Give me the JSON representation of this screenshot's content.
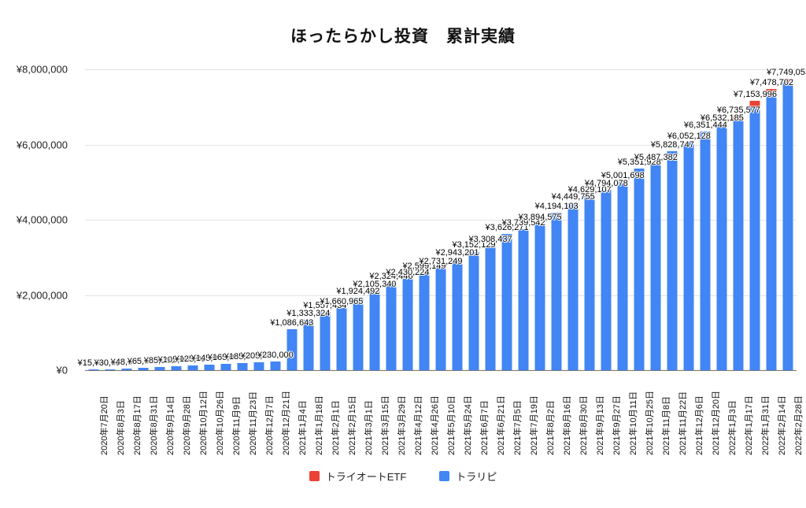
{
  "title": "ほったらかし投資　累計実績",
  "colors": {
    "etf_red": "#EA4335",
    "toraripi_blue": "#4285F4",
    "grid": "#E3E3E3",
    "axis_line": "#777777",
    "text": "#111111"
  },
  "legend": {
    "items": [
      {
        "label": "トライオートETF",
        "color": "#EA4335"
      },
      {
        "label": "トラリピ",
        "color": "#4285F4"
      }
    ]
  },
  "chart_data": {
    "type": "bar",
    "stacked": true,
    "title": "ほったらかし投資　累計実績",
    "xlabel": "",
    "ylabel": "",
    "ylim": [
      0,
      8000000
    ],
    "grid": true,
    "legend_position": "bottom",
    "bar_labels": "totals shown above each bar, prefixed with ¥",
    "yticks": [
      {
        "label": "¥8,000,000",
        "value": 8000000
      },
      {
        "label": "¥6,000,000",
        "value": 6000000
      },
      {
        "label": "¥4,000,000",
        "value": 4000000
      },
      {
        "label": "¥2,000,000",
        "value": 2000000
      },
      {
        "label": "¥0",
        "value": 0
      }
    ],
    "categories": [
      "2020年7月20日",
      "2020年8月3日",
      "2020年8月17日",
      "2020年8月31日",
      "2020年9月14日",
      "2020年9月28日",
      "2020年10月12日",
      "2020年10月26日",
      "2020年11月9日",
      "2020年11月23日",
      "2020年12月7日",
      "2020年12月21日",
      "2021年1月4日",
      "2021年1月18日",
      "2021年2月1日",
      "2021年2月15日",
      "2021年3月1日",
      "2021年3月15日",
      "2021年3月29日",
      "2021年4月12日",
      "2021年4月26日",
      "2021年5月10日",
      "2021年5月24日",
      "2021年6月7日",
      "2021年6月21日",
      "2021年7月5日",
      "2021年7月19日",
      "2021年8月2日",
      "2021年8月16日",
      "2021年8月30日",
      "2021年9月13日",
      "2021年9月27日",
      "2021年10月11日",
      "2021年10月25日",
      "2021年11月8日",
      "2021年11月22日",
      "2021年12月6日",
      "2021年12月20日",
      "2022年1月3日",
      "2022年1月17日",
      "2022年1月31日",
      "2022年2月14日",
      "2022年2月28日"
    ],
    "totals": [
      15000,
      30000,
      48000,
      65000,
      85000,
      105000,
      125000,
      145000,
      165000,
      185000,
      205000,
      230000,
      1086643,
      1333324,
      1557434,
      1660965,
      1924492,
      2105340,
      2324446,
      2430224,
      2599149,
      2731249,
      2943201,
      3152129,
      3308437,
      3626271,
      3739542,
      3894575,
      4194103,
      4449755,
      4629107,
      4794078,
      5001698,
      5351928,
      5487382,
      5828747,
      6052128,
      6351444,
      6532185,
      6735577,
      7153996,
      7478702,
      7749053
    ],
    "series": [
      {
        "name": "トライオートETF",
        "color": "#EA4335",
        "values": [
          0,
          0,
          0,
          0,
          0,
          0,
          0,
          0,
          0,
          0,
          0,
          0,
          0,
          0,
          0,
          0,
          0,
          0,
          0,
          0,
          0,
          0,
          0,
          0,
          0,
          0,
          0,
          0,
          0,
          0,
          0,
          0,
          0,
          0,
          0,
          0,
          0,
          0,
          60000,
          90000,
          150000,
          170000,
          90000
        ]
      },
      {
        "name": "トラリピ",
        "color": "#4285F4",
        "values": [
          15000,
          30000,
          48000,
          65000,
          85000,
          105000,
          125000,
          145000,
          165000,
          185000,
          205000,
          230000,
          1086643,
          1333324,
          1557434,
          1660965,
          1924492,
          2105340,
          2324446,
          2430224,
          2599149,
          2731249,
          2943201,
          3152129,
          3308437,
          3626271,
          3739542,
          3894575,
          4194103,
          4449755,
          4629107,
          4794078,
          5001698,
          5351928,
          5487382,
          5828747,
          6052128,
          6351444,
          6472185,
          6645577,
          7003996,
          7308702,
          7659053
        ]
      }
    ]
  }
}
